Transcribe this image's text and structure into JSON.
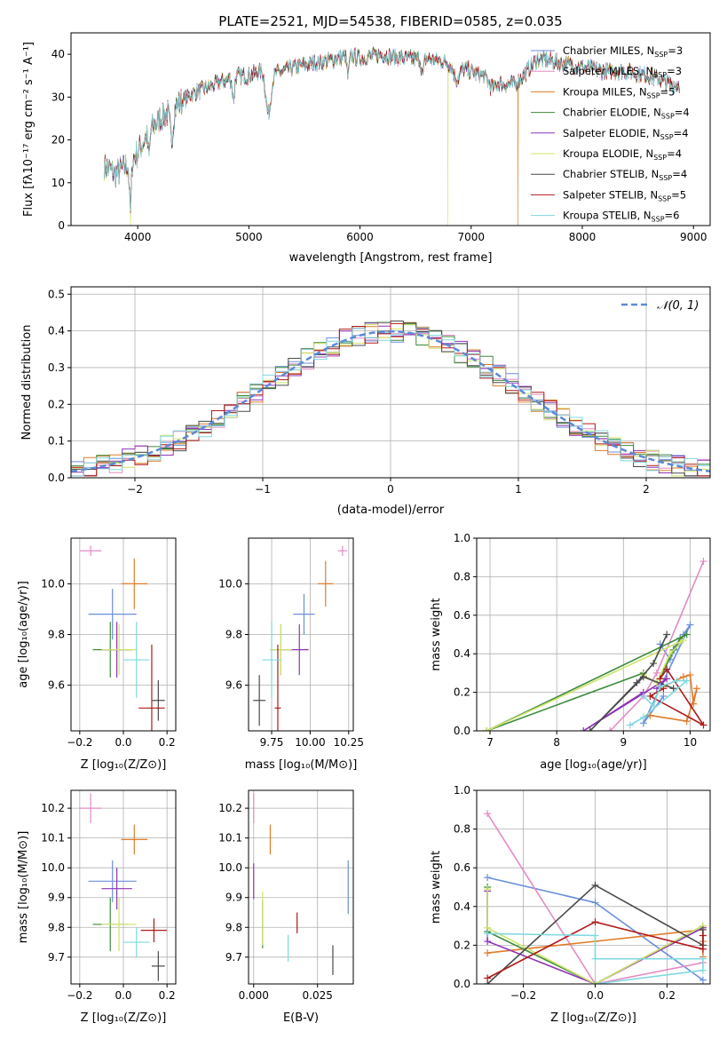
{
  "colors": [
    "#6a8fdc",
    "#e38bc4",
    "#e07b2a",
    "#3d8a3d",
    "#8e35b5",
    "#cfe36a",
    "#4a4a4a",
    "#b01a1a",
    "#7fd8e0"
  ],
  "spectrum": {
    "title": "PLATE=2521, MJD=54538, FIBERID=0585, z=0.035",
    "xlabel": "wavelength [Angstrom, rest frame]",
    "ylabel": "Flux [fλ10⁻¹⁷ erg cm⁻² s⁻¹ A⁻¹]",
    "xlim": [
      3400,
      9150
    ],
    "ylim": [
      0,
      45
    ],
    "xticks": [
      "4000",
      "5000",
      "6000",
      "7000",
      "8000",
      "9000"
    ],
    "yticks": [
      "0",
      "10",
      "20",
      "30",
      "40"
    ],
    "legend": [
      "Chabrier MILES, N_SSP=3",
      "Salpeter MILES, N_SSP=3",
      "Kroupa MILES, N_SSP=5",
      "Chabrier ELODIE, N_SSP=4",
      "Salpeter ELODIE, N_SSP=4",
      "Kroupa ELODIE, N_SSP=4",
      "Chabrier STELIB, N_SSP=4",
      "Salpeter STELIB, N_SSP=5",
      "Kroupa STELIB, N_SSP=6"
    ],
    "continuum": [
      [
        3700,
        14
      ],
      [
        3800,
        12
      ],
      [
        3900,
        14
      ],
      [
        4000,
        17
      ],
      [
        4100,
        22
      ],
      [
        4200,
        25
      ],
      [
        4300,
        27
      ],
      [
        4500,
        31
      ],
      [
        4700,
        33
      ],
      [
        4900,
        35
      ],
      [
        5000,
        35
      ],
      [
        5100,
        36
      ],
      [
        5200,
        35
      ],
      [
        5400,
        37
      ],
      [
        5600,
        38
      ],
      [
        5800,
        39
      ],
      [
        5900,
        40
      ],
      [
        6000,
        39
      ],
      [
        6200,
        40
      ],
      [
        6400,
        39
      ],
      [
        6600,
        39
      ],
      [
        6800,
        38
      ],
      [
        6900,
        37
      ],
      [
        7000,
        36
      ],
      [
        7100,
        35
      ],
      [
        7200,
        34
      ],
      [
        7300,
        33
      ],
      [
        7400,
        33
      ],
      [
        7500,
        36
      ],
      [
        7600,
        39
      ],
      [
        7800,
        38
      ],
      [
        8000,
        37
      ],
      [
        8200,
        36
      ],
      [
        8400,
        36
      ],
      [
        8600,
        35
      ],
      [
        8800,
        33
      ],
      [
        8880,
        33
      ]
    ],
    "dips": [
      {
        "x": 3934,
        "depth": 12,
        "width": 12
      },
      {
        "x": 4101,
        "depth": 6,
        "width": 12
      },
      {
        "x": 4304,
        "depth": 7,
        "width": 20
      },
      {
        "x": 4861,
        "depth": 5,
        "width": 14
      },
      {
        "x": 5175,
        "depth": 9,
        "width": 30
      },
      {
        "x": 5893,
        "depth": 5,
        "width": 16
      },
      {
        "x": 6563,
        "depth": 4,
        "width": 14
      },
      {
        "x": 6870,
        "depth": 3,
        "width": 40
      },
      {
        "x": 7190,
        "depth": 2,
        "width": 40
      }
    ],
    "spikes": [
      {
        "x": 3935,
        "y": 0,
        "series": 5
      },
      {
        "x": 6790,
        "y": 0,
        "series": 5
      },
      {
        "x": 7420,
        "y": 0,
        "series": 2
      }
    ]
  },
  "residuals": {
    "xlabel": "(data-model)/error",
    "ylabel": "Normed distribution",
    "xlim": [
      -2.5,
      2.5
    ],
    "ylim": [
      0,
      0.52
    ],
    "xticks": [
      "−2",
      "−1",
      "0",
      "1",
      "2"
    ],
    "yticks": [
      "0.0",
      "0.1",
      "0.2",
      "0.3",
      "0.4",
      "0.5"
    ],
    "legend": "𝒩(0, 1)",
    "bin_width": 0.1
  },
  "scatter_age_Z": {
    "xlabel": "Z [log₁₀(Z/Z⊙)]",
    "ylabel": "age  [log₁₀(age/yr)]",
    "xlim": [
      -0.24,
      0.24
    ],
    "ylim": [
      9.42,
      10.18
    ],
    "xticks": [
      "−0.2",
      "0.0",
      "0.2"
    ],
    "yticks": [
      "9.6",
      "9.8",
      "10.0"
    ],
    "points": [
      {
        "x": -0.05,
        "xerr": 0.11,
        "y": 9.88,
        "yerr": 0.1
      },
      {
        "x": -0.15,
        "xerr": 0.05,
        "y": 10.13,
        "yerr": 0.02
      },
      {
        "x": 0.05,
        "xerr": 0.06,
        "y": 10.0,
        "yerr": 0.1
      },
      {
        "x": -0.06,
        "xerr": 0.08,
        "y": 9.74,
        "yerr": 0.11
      },
      {
        "x": -0.03,
        "xerr": 0.07,
        "y": 9.74,
        "yerr": 0.11
      },
      {
        "x": -0.02,
        "xerr": 0.08,
        "y": 9.74,
        "yerr": 0.1
      },
      {
        "x": 0.16,
        "xerr": 0.03,
        "y": 9.54,
        "yerr": 0.08
      },
      {
        "x": 0.13,
        "xerr": 0.06,
        "y": 9.51,
        "yerr": 0.25
      },
      {
        "x": 0.06,
        "xerr": 0.06,
        "y": 9.7,
        "yerr": 0.15
      }
    ]
  },
  "scatter_age_mass": {
    "xlabel": "mass [log₁₀(M/M⊙)]",
    "xlim": [
      9.6,
      10.28
    ],
    "ylim": [
      9.42,
      10.18
    ],
    "xticks": [
      "9.75",
      "10.00",
      "10.25"
    ],
    "yticks": [
      "9.6",
      "9.8",
      "10.0"
    ],
    "points": [
      {
        "x": 9.96,
        "xerr": 0.07,
        "y": 9.88,
        "yerr": 0.08
      },
      {
        "x": 10.21,
        "xerr": 0.03,
        "y": 10.13,
        "yerr": 0.02
      },
      {
        "x": 10.1,
        "xerr": 0.05,
        "y": 10.0,
        "yerr": 0.09
      },
      {
        "x": 9.81,
        "xerr": 0.07,
        "y": 9.74,
        "yerr": 0.1
      },
      {
        "x": 9.93,
        "xerr": 0.06,
        "y": 9.74,
        "yerr": 0.1
      },
      {
        "x": 9.81,
        "xerr": 0.07,
        "y": 9.74,
        "yerr": 0.1
      },
      {
        "x": 9.67,
        "xerr": 0.04,
        "y": 9.54,
        "yerr": 0.1
      },
      {
        "x": 9.79,
        "xerr": 0.02,
        "y": 9.51,
        "yerr": 0.25
      },
      {
        "x": 9.75,
        "xerr": 0.06,
        "y": 9.7,
        "yerr": 0.15
      }
    ]
  },
  "weights_age": {
    "xlabel": "age  [log₁₀(age/yr)]",
    "ylabel": "mass weight",
    "xlim": [
      6.8,
      10.3
    ],
    "ylim": [
      0,
      1
    ],
    "xticks": [
      "7",
      "8",
      "9",
      "10"
    ],
    "yticks": [
      "0.0",
      "0.2",
      "0.4",
      "0.6",
      "0.8",
      "1.0"
    ],
    "series": [
      [
        [
          9.55,
          0.45
        ],
        [
          9.7,
          0.37
        ],
        [
          9.8,
          0.44
        ],
        [
          9.9,
          0.5
        ],
        [
          10.0,
          0.55
        ],
        [
          9.3,
          0.04
        ],
        [
          9.6,
          0.18
        ]
      ],
      [
        [
          10.2,
          0.88
        ],
        [
          9.5,
          0.3
        ],
        [
          9.3,
          0.18
        ],
        [
          8.8,
          0.0
        ]
      ],
      [
        [
          9.6,
          0.23
        ],
        [
          9.9,
          0.28
        ],
        [
          10.0,
          0.29
        ],
        [
          10.05,
          0.14
        ],
        [
          10.1,
          0.22
        ],
        [
          9.95,
          0.05
        ],
        [
          9.4,
          0.08
        ]
      ],
      [
        [
          9.55,
          0.27
        ],
        [
          9.75,
          0.42
        ],
        [
          9.85,
          0.48
        ],
        [
          9.95,
          0.5
        ],
        [
          6.95,
          0.0
        ],
        [
          9.3,
          0.3
        ]
      ],
      [
        [
          9.5,
          0.22
        ],
        [
          9.65,
          0.27
        ],
        [
          8.4,
          0.0
        ],
        [
          9.3,
          0.2
        ]
      ],
      [
        [
          9.3,
          0.29
        ],
        [
          9.5,
          0.25
        ],
        [
          9.7,
          0.4
        ],
        [
          9.9,
          0.47
        ],
        [
          6.95,
          0.0
        ]
      ],
      [
        [
          9.65,
          0.5
        ],
        [
          9.45,
          0.35
        ],
        [
          9.2,
          0.25
        ],
        [
          8.5,
          0.0
        ],
        [
          9.3,
          0.28
        ],
        [
          9.75,
          0.22
        ]
      ],
      [
        [
          9.55,
          0.27
        ],
        [
          9.65,
          0.32
        ],
        [
          10.2,
          0.03
        ],
        [
          9.4,
          0.18
        ],
        [
          9.6,
          0.22
        ]
      ],
      [
        [
          9.3,
          0.18
        ],
        [
          9.45,
          0.13
        ],
        [
          9.55,
          0.23
        ],
        [
          9.8,
          0.26
        ],
        [
          9.95,
          0.26
        ],
        [
          9.3,
          0.07
        ],
        [
          9.1,
          0.03
        ]
      ]
    ]
  },
  "scatter_mass_Z": {
    "xlabel": "Z [log₁₀(Z/Z⊙)]",
    "ylabel": "mass [log₁₀(M/M⊙)]",
    "xlim": [
      -0.24,
      0.24
    ],
    "ylim": [
      9.61,
      10.26
    ],
    "xticks": [
      "−0.2",
      "0.0",
      "0.2"
    ],
    "yticks": [
      "9.7",
      "9.8",
      "9.9",
      "10.0",
      "10.1",
      "10.2"
    ],
    "points": [
      {
        "x": -0.05,
        "xerr": 0.11,
        "y": 9.955,
        "yerr": 0.07
      },
      {
        "x": -0.15,
        "xerr": 0.05,
        "y": 10.2,
        "yerr": 0.05
      },
      {
        "x": 0.05,
        "xerr": 0.06,
        "y": 10.095,
        "yerr": 0.05
      },
      {
        "x": -0.06,
        "xerr": 0.08,
        "y": 9.81,
        "yerr": 0.09
      },
      {
        "x": -0.03,
        "xerr": 0.07,
        "y": 9.93,
        "yerr": 0.07
      },
      {
        "x": -0.02,
        "xerr": 0.08,
        "y": 9.81,
        "yerr": 0.09
      },
      {
        "x": 0.16,
        "xerr": 0.03,
        "y": 9.67,
        "yerr": 0.05
      },
      {
        "x": 0.14,
        "xerr": 0.06,
        "y": 9.79,
        "yerr": 0.04
      },
      {
        "x": 0.06,
        "xerr": 0.06,
        "y": 9.75,
        "yerr": 0.05
      }
    ]
  },
  "scatter_mass_ebv": {
    "xlabel": "E(B-V)",
    "xlim": [
      -0.002,
      0.039
    ],
    "ylim": [
      9.61,
      10.26
    ],
    "xticks": [
      "0.000",
      "0.025"
    ],
    "yticks": [
      "9.7",
      "9.8",
      "9.9",
      "10.0",
      "10.1",
      "10.2"
    ],
    "points": [
      {
        "x": 0.037,
        "xerr": 0.0,
        "y": 9.935,
        "yerr": 0.09
      },
      {
        "x": 0.0,
        "xerr": 0.0,
        "y": 10.2,
        "yerr": 0.05
      },
      {
        "x": 0.0065,
        "xerr": 0.0,
        "y": 10.095,
        "yerr": 0.05
      },
      {
        "x": 0.0035,
        "xerr": 0.0,
        "y": 9.81,
        "yerr": 0.08
      },
      {
        "x": 0.0,
        "xerr": 0.0,
        "y": 9.955,
        "yerr": 0.06
      },
      {
        "x": 0.0035,
        "xerr": 0.0,
        "y": 9.83,
        "yerr": 0.09
      },
      {
        "x": 0.031,
        "xerr": 0.0,
        "y": 9.69,
        "yerr": 0.05
      },
      {
        "x": 0.017,
        "xerr": 0.0,
        "y": 9.815,
        "yerr": 0.035
      },
      {
        "x": 0.0135,
        "xerr": 0.0,
        "y": 9.73,
        "yerr": 0.045
      }
    ]
  },
  "weights_Z": {
    "xlabel": "Z [log₁₀(Z/Z⊙)]",
    "ylabel": "mass weight",
    "xlim": [
      -0.33,
      0.32
    ],
    "ylim": [
      0,
      1
    ],
    "xticks": [
      "−0.2",
      "0.0",
      "0.2"
    ],
    "yticks": [
      "0.0",
      "0.2",
      "0.4",
      "0.6",
      "0.8",
      "1.0"
    ],
    "series": [
      [
        [
          -0.3,
          0.55
        ],
        [
          0.0,
          0.42
        ],
        [
          0.3,
          0.02
        ]
      ],
      [
        [
          -0.3,
          0.88
        ],
        [
          0.0,
          0.0
        ],
        [
          0.3,
          0.11
        ]
      ],
      [
        [
          -0.3,
          0.16
        ],
        [
          0.0,
          0.22
        ],
        [
          0.3,
          0.28
        ],
        [
          0.3,
          0.14
        ],
        [
          0.3,
          0.22
        ]
      ],
      [
        [
          -0.3,
          0.5
        ],
        [
          -0.3,
          0.27
        ],
        [
          0.0,
          0.0
        ],
        [
          0.3,
          0.3
        ]
      ],
      [
        [
          -0.3,
          0.48
        ],
        [
          -0.3,
          0.22
        ],
        [
          0.0,
          0.0
        ],
        [
          0.3,
          0.29
        ]
      ],
      [
        [
          -0.3,
          0.49
        ],
        [
          -0.3,
          0.29
        ],
        [
          0.0,
          0.0
        ],
        [
          0.3,
          0.3
        ],
        [
          0.3,
          0.25
        ]
      ],
      [
        [
          -0.3,
          0.0
        ],
        [
          0.0,
          0.51
        ],
        [
          0.3,
          0.2
        ],
        [
          0.3,
          0.28
        ]
      ],
      [
        [
          -0.3,
          0.03
        ],
        [
          0.0,
          0.32
        ],
        [
          0.3,
          0.18
        ],
        [
          0.3,
          0.25
        ]
      ],
      [
        [
          -0.3,
          0.26
        ],
        [
          0.0,
          0.25
        ],
        [
          0.0,
          0.13
        ],
        [
          0.3,
          0.13
        ],
        [
          0.3,
          0.07
        ],
        [
          0.0,
          0.0
        ]
      ]
    ]
  }
}
